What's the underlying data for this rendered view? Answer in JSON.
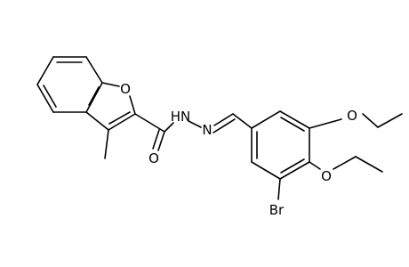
{
  "molecule": {
    "atoms": [
      "O",
      "O",
      "HN",
      "N",
      "O",
      "O",
      "Br"
    ]
  }
}
